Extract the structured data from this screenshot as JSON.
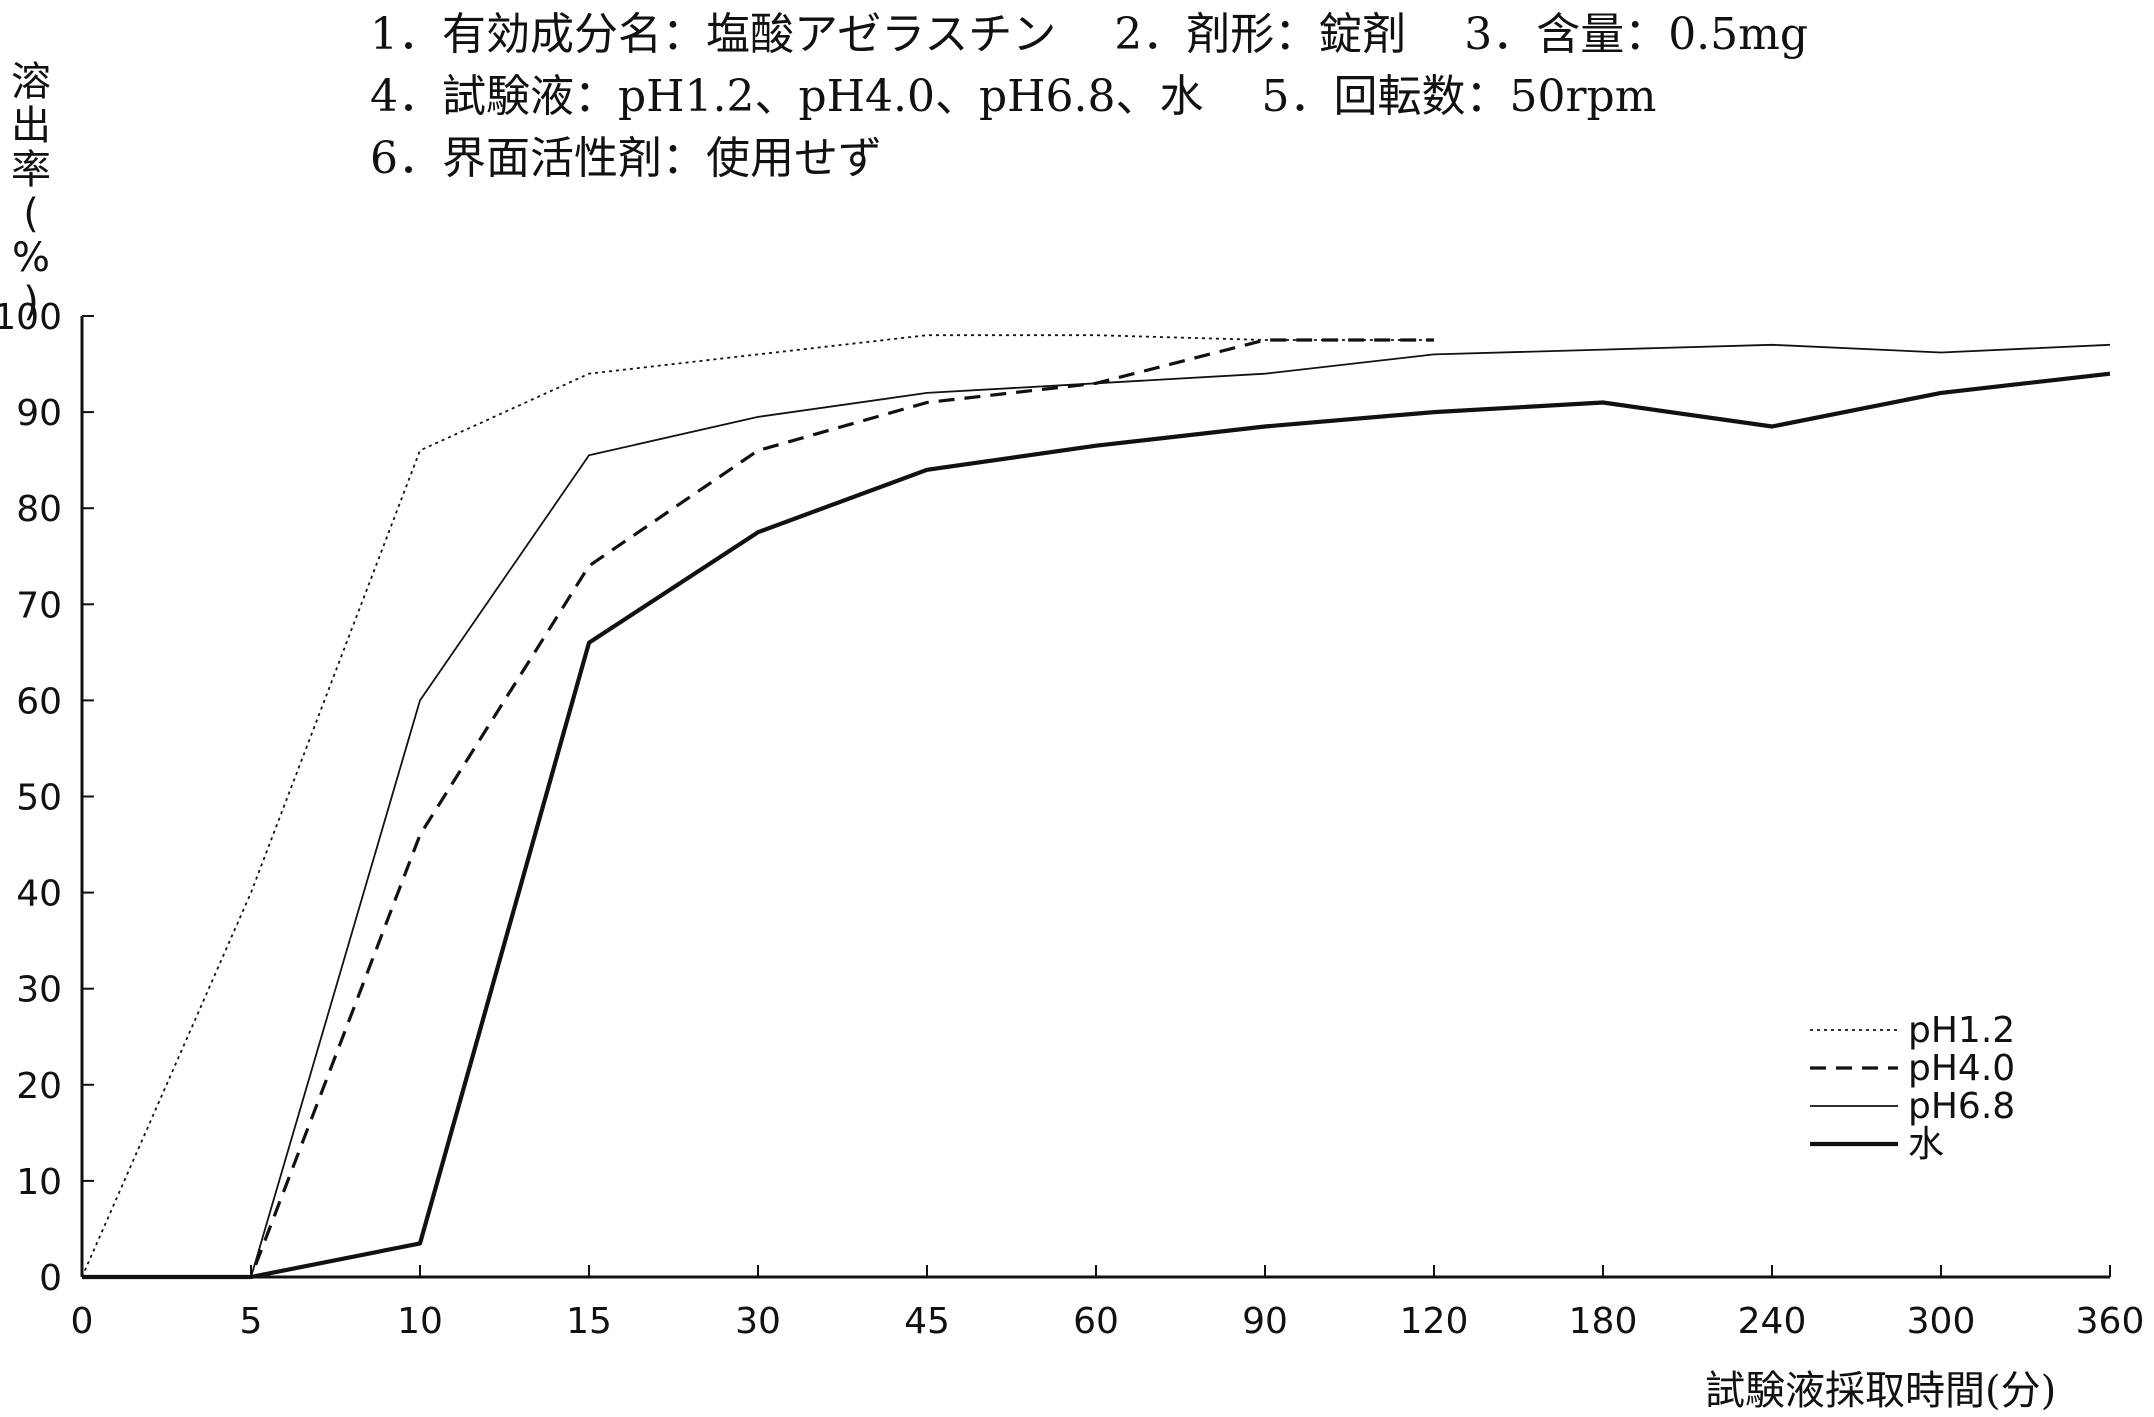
{
  "header": {
    "line1": "1．有効成分名：塩酸アゼラスチン　 2．剤形：錠剤　 3．含量：0.5mg",
    "line2": "4．試験液：pH1.2、pH4.0、pH6.8、水　 5．回転数：50rpm",
    "line3": "6．界面活性剤：使用せず"
  },
  "chart_data": {
    "type": "line",
    "title": "",
    "ylabel": "溶出率(%)",
    "ylabel_chars": [
      "溶",
      "出",
      "率",
      "(",
      "%",
      ")"
    ],
    "xlabel": "試験液採取時間(分)",
    "categories": [
      "0",
      "5",
      "10",
      "15",
      "30",
      "45",
      "60",
      "90",
      "120",
      "180",
      "240",
      "300",
      "360"
    ],
    "ylim": [
      0,
      100
    ],
    "yticks": [
      0,
      10,
      20,
      30,
      40,
      50,
      60,
      70,
      80,
      90,
      100
    ],
    "grid": false,
    "legend_position": "bottom-right",
    "series": [
      {
        "name": "pH1.2",
        "style": "dotted",
        "color": "#111111",
        "values": [
          0,
          40,
          86,
          94,
          96,
          98,
          98,
          97.5,
          97.5,
          null,
          null,
          null,
          null
        ]
      },
      {
        "name": "pH4.0",
        "style": "dashed",
        "color": "#111111",
        "values": [
          0,
          0,
          46,
          74,
          86,
          91,
          93,
          97.5,
          97.5,
          null,
          null,
          null,
          null
        ]
      },
      {
        "name": "pH6.8",
        "style": "thin",
        "color": "#111111",
        "values": [
          0,
          0,
          60,
          85.5,
          89.5,
          92,
          93,
          94,
          96,
          96.5,
          97,
          96.2,
          97
        ]
      },
      {
        "name": "水",
        "style": "thick",
        "color": "#111111",
        "values": [
          0,
          0,
          3.5,
          66,
          77.5,
          84,
          86.5,
          88.5,
          90,
          91,
          88.5,
          92,
          94
        ]
      }
    ]
  }
}
